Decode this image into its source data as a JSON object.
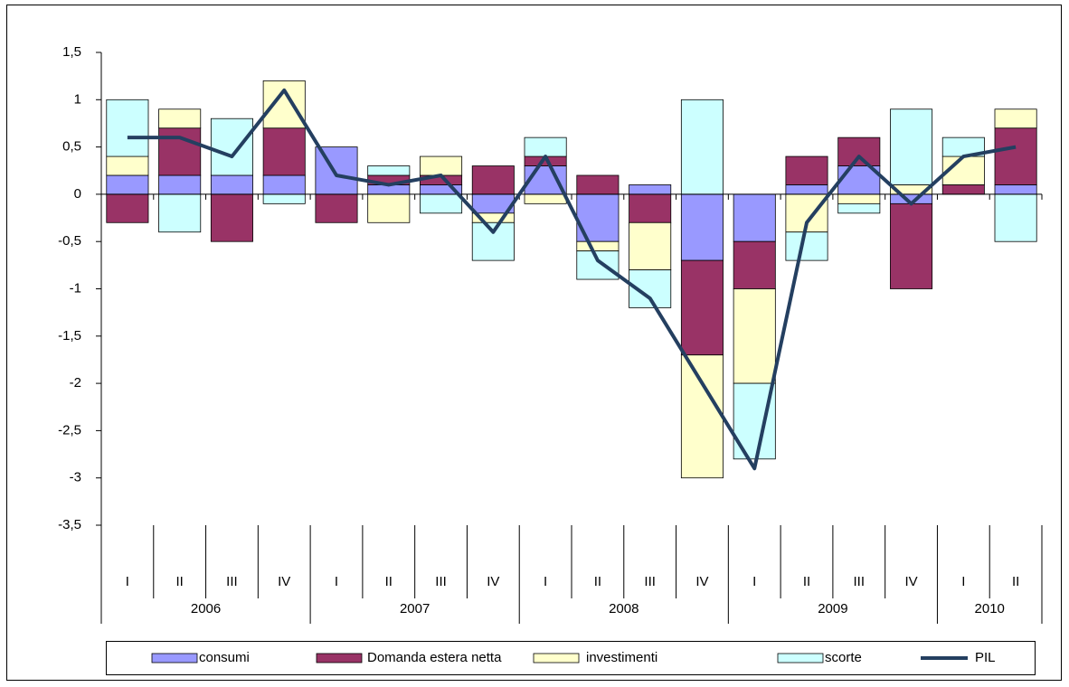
{
  "chart_data": {
    "type": "stacked-bar-line",
    "groups": [
      {
        "label": "2006",
        "categories": [
          "I",
          "II",
          "III",
          "IV"
        ]
      },
      {
        "label": "2007",
        "categories": [
          "I",
          "II",
          "III",
          "IV"
        ]
      },
      {
        "label": "2008",
        "categories": [
          "I",
          "II",
          "III",
          "IV"
        ]
      },
      {
        "label": "2009",
        "categories": [
          "I",
          "II",
          "III",
          "IV"
        ]
      },
      {
        "label": "2010",
        "categories": [
          "I",
          "II"
        ]
      }
    ],
    "series": [
      {
        "name": "consumi",
        "color": "#9999ff",
        "values": [
          0.2,
          0.2,
          0.2,
          0.2,
          0.5,
          0.1,
          0.1,
          -0.2,
          0.3,
          -0.5,
          0.1,
          -0.7,
          -0.5,
          0.1,
          0.3,
          -0.1,
          0,
          0.1
        ]
      },
      {
        "name": "Domanda estera netta",
        "color": "#993366",
        "values": [
          -0.3,
          0.5,
          -0.5,
          0.5,
          -0.3,
          0.1,
          0.1,
          0.3,
          0.1,
          0.2,
          -0.3,
          -1.0,
          -0.5,
          0.3,
          0.3,
          -0.9,
          0.1,
          0.6
        ]
      },
      {
        "name": "investimenti",
        "color": "#ffffcc",
        "values": [
          0.2,
          0.2,
          0,
          0.5,
          0,
          -0.3,
          0.2,
          -0.1,
          -0.1,
          -0.1,
          -0.5,
          -1.3,
          -1.0,
          -0.4,
          -0.1,
          0.1,
          0.3,
          0.2
        ]
      },
      {
        "name": "scorte",
        "color": "#ccffff",
        "values": [
          0.6,
          -0.4,
          0.6,
          -0.1,
          0,
          0.1,
          -0.2,
          -0.4,
          0.2,
          -0.3,
          -0.4,
          1.0,
          -0.8,
          -0.3,
          -0.1,
          0.8,
          0.2,
          -0.5
        ]
      },
      {
        "name": "PIL",
        "color": "#243f60",
        "kind": "line",
        "values": [
          0.6,
          0.6,
          0.4,
          1.1,
          0.2,
          0.1,
          0.2,
          -0.4,
          0.4,
          -0.7,
          -1.1,
          -2.0,
          -2.9,
          -0.3,
          0.4,
          -0.1,
          0.4,
          0.5
        ]
      }
    ],
    "ylim": [
      -3.5,
      1.5
    ],
    "yticks": [
      {
        "value": 1.5,
        "label": "1,5"
      },
      1,
      {
        "value": 0.5,
        "label": "0,5"
      },
      0,
      {
        "value": -0.5,
        "label": "-0,5"
      },
      -1,
      {
        "value": -1.5,
        "label": "-1,5"
      },
      -2,
      {
        "value": -2.5,
        "label": "-2,5"
      },
      -3,
      {
        "value": -3.5,
        "label": "-3,5"
      }
    ],
    "legend": "bottom"
  }
}
